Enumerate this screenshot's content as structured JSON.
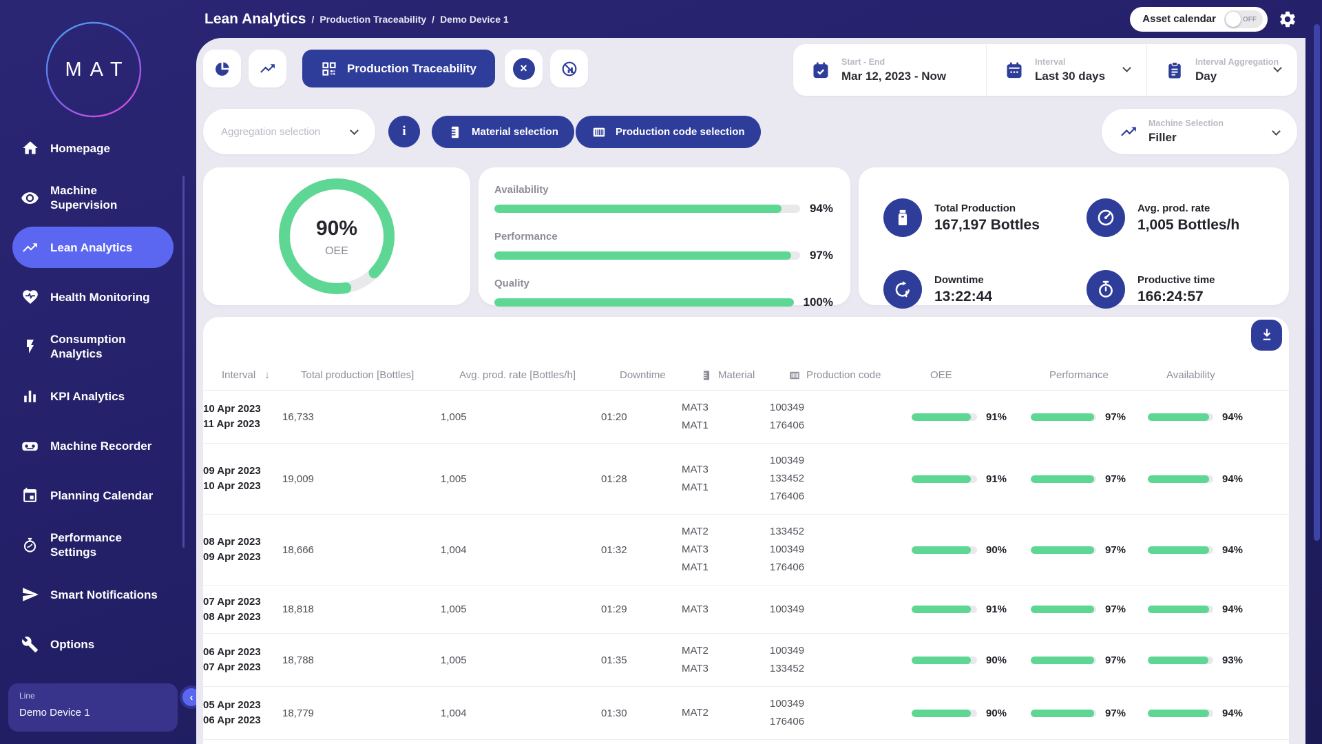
{
  "header": {
    "breadcrumb": {
      "title": "Lean Analytics",
      "separator": "/",
      "items": [
        "Production Traceability",
        "Demo Device 1"
      ]
    },
    "asset_calendar": {
      "label": "Asset calendar",
      "state": "OFF"
    }
  },
  "sidebar": {
    "logo_text": "MAT",
    "items": [
      {
        "label": "Homepage"
      },
      {
        "label": "Machine Supervision"
      },
      {
        "label": "Lean Analytics"
      },
      {
        "label": "Health Monitoring"
      },
      {
        "label": "Consumption Analytics"
      },
      {
        "label": "KPI Analytics"
      },
      {
        "label": "Machine Recorder"
      },
      {
        "label": "Planning Calendar"
      },
      {
        "label": "Performance Settings"
      },
      {
        "label": "Smart Notifications"
      },
      {
        "label": "Options"
      }
    ],
    "device": {
      "label": "Line",
      "value": "Demo Device 1"
    },
    "collapse_glyph": "‹"
  },
  "toolbar": {
    "active_tab_label": "Production Traceability",
    "date_range": {
      "label": "Start - End",
      "value": "Mar 12, 2023 - Now"
    },
    "interval": {
      "label": "Interval",
      "value": "Last 30 days"
    },
    "aggregation": {
      "label": "Interval Aggregation",
      "value": "Day"
    }
  },
  "filters": {
    "aggregation_placeholder": "Aggregation selection",
    "info_glyph": "i",
    "material_label": "Material selection",
    "production_code_label": "Production code selection",
    "machine": {
      "label": "Machine Selection",
      "value": "Filler"
    }
  },
  "oee_gauge": {
    "percent": 90,
    "value_display": "90%",
    "label": "OEE",
    "color": "#5fd794"
  },
  "summary_bars": [
    {
      "label": "Availability",
      "percent": 94,
      "display": "94%"
    },
    {
      "label": "Performance",
      "percent": 97,
      "display": "97%"
    },
    {
      "label": "Quality",
      "percent": 100,
      "display": "100%"
    }
  ],
  "kpis": [
    {
      "label": "Total Production",
      "value": "167,197 Bottles"
    },
    {
      "label": "Avg. prod. rate",
      "value": "1,005 Bottles/h"
    },
    {
      "label": "Downtime",
      "value": "13:22:44"
    },
    {
      "label": "Productive time",
      "value": "166:24:57"
    }
  ],
  "table": {
    "columns": [
      "Interval",
      "Total production [Bottles]",
      "Avg. prod. rate [Bottles/h]",
      "Downtime",
      "Material",
      "Production code",
      "OEE",
      "Performance",
      "Availability"
    ],
    "sort_glyph": "↓",
    "rows": [
      {
        "interval": [
          "10 Apr 2023",
          "11 Apr 2023"
        ],
        "total": "16,733",
        "avg": "1,005",
        "downtime": "01:20",
        "materials": [
          "MAT3",
          "MAT1"
        ],
        "codes": [
          "100349",
          "176406"
        ],
        "oee": 91,
        "performance": 97,
        "availability": 94
      },
      {
        "interval": [
          "09 Apr 2023",
          "10 Apr 2023"
        ],
        "total": "19,009",
        "avg": "1,005",
        "downtime": "01:28",
        "materials": [
          "MAT3",
          "MAT1"
        ],
        "codes": [
          "100349",
          "133452",
          "176406"
        ],
        "oee": 91,
        "performance": 97,
        "availability": 94
      },
      {
        "interval": [
          "08 Apr 2023",
          "09 Apr 2023"
        ],
        "total": "18,666",
        "avg": "1,004",
        "downtime": "01:32",
        "materials": [
          "MAT2",
          "MAT3",
          "MAT1"
        ],
        "codes": [
          "133452",
          "100349",
          "176406"
        ],
        "oee": 90,
        "performance": 97,
        "availability": 94
      },
      {
        "interval": [
          "07 Apr 2023",
          "08 Apr 2023"
        ],
        "total": "18,818",
        "avg": "1,005",
        "downtime": "01:29",
        "materials": [
          "MAT3"
        ],
        "codes": [
          "100349"
        ],
        "oee": 91,
        "performance": 97,
        "availability": 94
      },
      {
        "interval": [
          "06 Apr 2023",
          "07 Apr 2023"
        ],
        "total": "18,788",
        "avg": "1,005",
        "downtime": "01:35",
        "materials": [
          "MAT2",
          "MAT3"
        ],
        "codes": [
          "100349",
          "133452"
        ],
        "oee": 90,
        "performance": 97,
        "availability": 93
      },
      {
        "interval": [
          "05 Apr 2023",
          "06 Apr 2023"
        ],
        "total": "18,779",
        "avg": "1,004",
        "downtime": "01:30",
        "materials": [
          "MAT2"
        ],
        "codes": [
          "100349",
          "176406"
        ],
        "oee": 90,
        "performance": 97,
        "availability": 94
      }
    ]
  },
  "colors": {
    "accent_blue": "#2f3d9a",
    "active_item": "#5b67f1",
    "green": "#5fd794"
  }
}
